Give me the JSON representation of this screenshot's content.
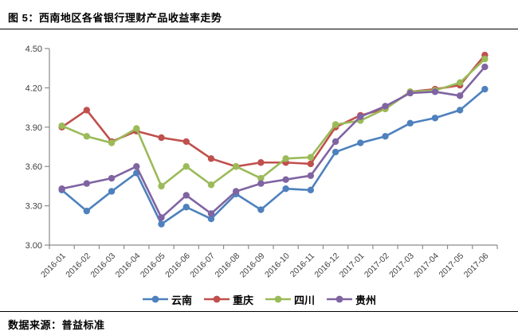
{
  "page": {
    "figure_title": "图 5：西南地区各省银行理财产品收益率走势",
    "source": "数据来源：普益标准"
  },
  "chart_data": {
    "type": "line",
    "title": "西南地区各省银行理财产品收益率走势",
    "categories": [
      "2016-01",
      "2016-02",
      "2016-03",
      "2016-04",
      "2016-05",
      "2016-06",
      "2016-07",
      "2016-08",
      "2016-09",
      "2016-10",
      "2016-11",
      "2016-12",
      "2017-01",
      "2017-02",
      "2017-03",
      "2017-04",
      "2017-05",
      "2017-06"
    ],
    "series": [
      {
        "name": "云南",
        "slug": "yunnan",
        "color": "#4E81BD",
        "values": [
          3.42,
          3.26,
          3.41,
          3.55,
          3.16,
          3.29,
          3.2,
          3.39,
          3.27,
          3.43,
          3.42,
          3.71,
          3.78,
          3.83,
          3.93,
          3.97,
          4.03,
          4.19
        ]
      },
      {
        "name": "重庆",
        "slug": "chongqing",
        "color": "#C0504D",
        "values": [
          3.9,
          4.03,
          3.79,
          3.87,
          3.82,
          3.79,
          3.66,
          3.6,
          3.63,
          3.63,
          3.62,
          3.9,
          3.99,
          4.04,
          4.17,
          4.19,
          4.22,
          4.45
        ]
      },
      {
        "name": "四川",
        "slug": "sichuan",
        "color": "#9BBB59",
        "values": [
          3.91,
          3.83,
          3.78,
          3.89,
          3.45,
          3.6,
          3.46,
          3.6,
          3.51,
          3.66,
          3.67,
          3.92,
          3.95,
          4.04,
          4.17,
          4.18,
          4.24,
          4.42
        ]
      },
      {
        "name": "贵州",
        "slug": "guizhou",
        "color": "#8064A2",
        "values": [
          3.43,
          3.47,
          3.51,
          3.6,
          3.21,
          3.38,
          3.24,
          3.41,
          3.47,
          3.5,
          3.53,
          3.79,
          3.98,
          4.06,
          4.16,
          4.17,
          4.14,
          4.36
        ]
      }
    ],
    "ylim": [
      3.0,
      4.5
    ],
    "yticks": [
      3.0,
      3.3,
      3.6,
      3.9,
      4.2,
      4.5
    ],
    "ytick_labels": [
      "3.00",
      "3.30",
      "3.60",
      "3.90",
      "4.20",
      "4.50"
    ],
    "grid": false,
    "legend_position": "bottom",
    "axis_color": "#8C8C8C",
    "tick_label_color": "#404040"
  }
}
